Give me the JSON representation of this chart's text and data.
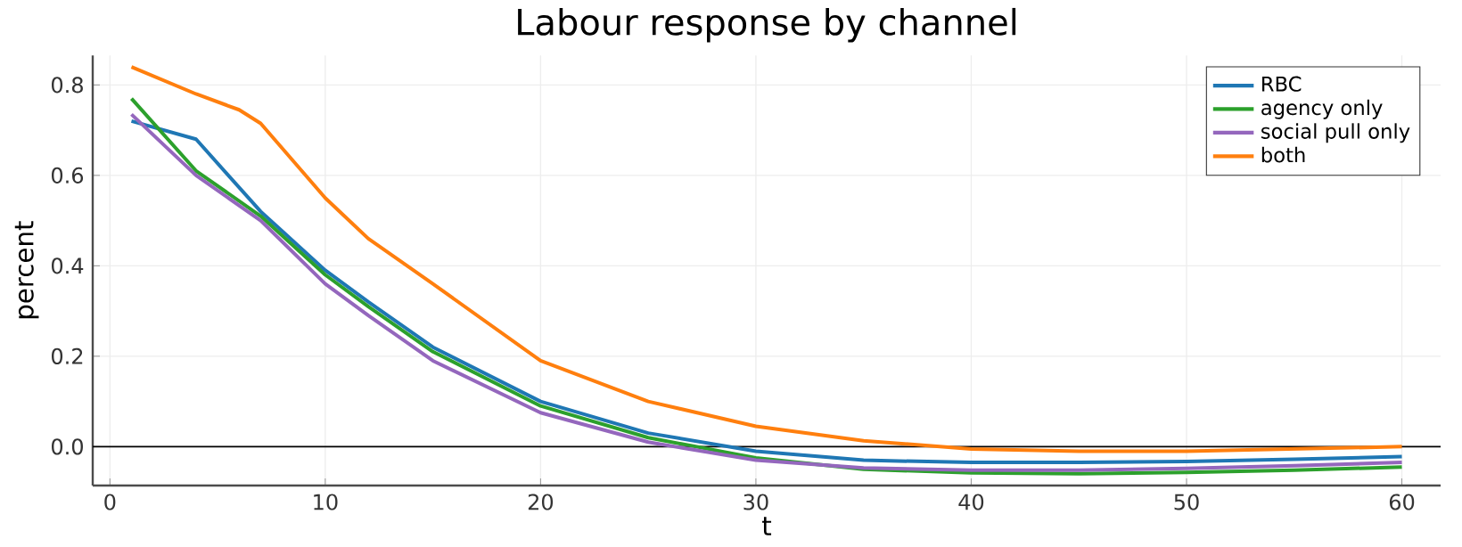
{
  "chart_data": {
    "type": "line",
    "title": "Labour response by channel",
    "xlabel": "t",
    "ylabel": "percent",
    "xlim": [
      -0.8,
      61.8
    ],
    "ylim": [
      -0.086,
      0.865
    ],
    "xticks": [
      0,
      10,
      20,
      30,
      40,
      50,
      60
    ],
    "yticks": [
      {
        "value": 0,
        "label": "0.0"
      },
      0.2,
      0.4,
      0.6,
      0.8
    ],
    "grid": true,
    "legend": "top right",
    "line_style": "solid",
    "marker": "none",
    "ref_lines": [
      {
        "axis": "y",
        "value": 0,
        "color": "#000000"
      }
    ],
    "series": [
      {
        "name": "RBC",
        "color": "#1f77b4",
        "x": [
          1,
          4,
          7,
          10,
          12,
          15,
          20,
          25,
          30,
          35,
          40,
          45,
          50,
          55,
          60
        ],
        "values": [
          0.72,
          0.68,
          0.52,
          0.39,
          0.32,
          0.22,
          0.1,
          0.03,
          -0.01,
          -0.03,
          -0.035,
          -0.035,
          -0.033,
          -0.028,
          -0.022
        ]
      },
      {
        "name": "agency only",
        "color": "#2ca02c",
        "x": [
          1,
          4,
          7,
          10,
          12,
          15,
          20,
          25,
          30,
          35,
          40,
          45,
          50,
          55,
          60
        ],
        "values": [
          0.77,
          0.61,
          0.51,
          0.38,
          0.31,
          0.21,
          0.09,
          0.02,
          -0.025,
          -0.05,
          -0.058,
          -0.06,
          -0.057,
          -0.052,
          -0.045
        ]
      },
      {
        "name": "social pull only",
        "color": "#9467bd",
        "x": [
          1,
          4,
          7,
          10,
          12,
          15,
          20,
          25,
          30,
          35,
          40,
          45,
          50,
          55,
          60
        ],
        "values": [
          0.735,
          0.6,
          0.5,
          0.36,
          0.29,
          0.19,
          0.075,
          0.01,
          -0.03,
          -0.047,
          -0.052,
          -0.052,
          -0.048,
          -0.042,
          -0.035
        ]
      },
      {
        "name": "both",
        "color": "#ff7f0e",
        "x": [
          1,
          4,
          6,
          7,
          10,
          12,
          15,
          20,
          25,
          30,
          35,
          40,
          45,
          50,
          55,
          60
        ],
        "values": [
          0.84,
          0.78,
          0.745,
          0.715,
          0.55,
          0.46,
          0.36,
          0.19,
          0.1,
          0.045,
          0.013,
          -0.005,
          -0.01,
          -0.01,
          -0.005,
          0.0
        ]
      }
    ]
  }
}
